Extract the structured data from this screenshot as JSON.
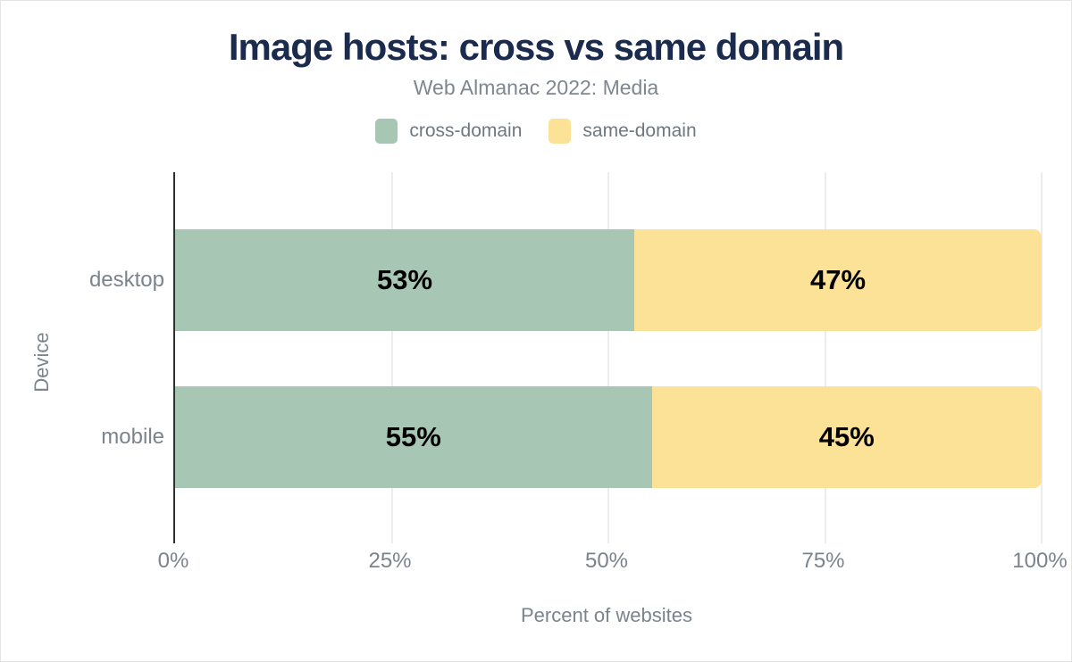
{
  "chart_data": {
    "type": "bar",
    "orientation": "horizontal",
    "stacked": true,
    "title": "Image hosts: cross vs same domain",
    "subtitle": "Web Almanac 2022: Media",
    "categories": [
      "desktop",
      "mobile"
    ],
    "series": [
      {
        "name": "cross-domain",
        "color": "#a8c6b4",
        "values": [
          53,
          55
        ],
        "labels": [
          "53%",
          "55%"
        ]
      },
      {
        "name": "same-domain",
        "color": "#fce297",
        "values": [
          47,
          45
        ],
        "labels": [
          "47%",
          "45%"
        ]
      }
    ],
    "xlabel": "Percent of websites",
    "ylabel": "Device",
    "xlim": [
      0,
      100
    ],
    "xticks": {
      "values": [
        0,
        25,
        50,
        75,
        100
      ],
      "labels": [
        "0%",
        "25%",
        "50%",
        "75%",
        "100%"
      ]
    },
    "grid": "vertical-light",
    "legend_position": "top-center",
    "colors": {
      "title": "#1b2b4d",
      "text": "#7b838c",
      "axis_line": "#2f2f2f",
      "gridline": "#ececec",
      "data_label": "#000000",
      "background": "#ffffff"
    }
  }
}
